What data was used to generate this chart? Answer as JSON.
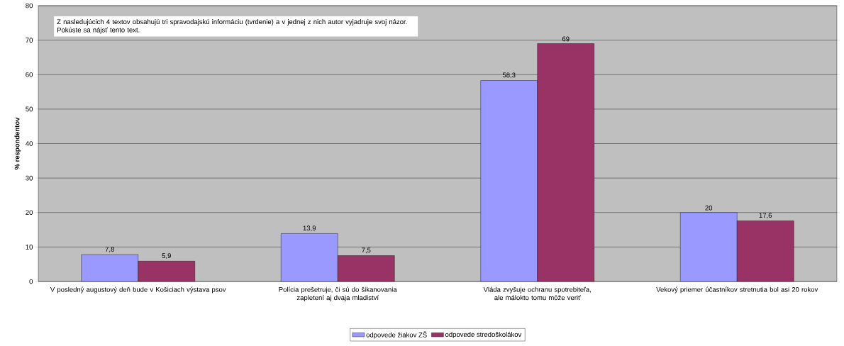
{
  "chart_data": {
    "type": "bar",
    "ylabel": "% respondentov",
    "categories": [
      "V posledný augustový deň bude v Košiciach výstava psov",
      "Polícia prešetruje, či sú do šikanovania zapletení aj dvaja mladiství",
      "Vláda zvyšuje ochranu spotrebiteľa, ale málokto tomu môže veriť",
      "Vekový priemer účastníkov stretnutia bol asi 20 rokov"
    ],
    "series": [
      {
        "name": "odpovede žiakov ZŠ",
        "color": "#9999ff",
        "values": [
          7.8,
          13.9,
          58.3,
          20
        ],
        "value_labels": [
          "7,8",
          "13,9",
          "58,3",
          "20"
        ]
      },
      {
        "name": "odpovede stredoškolákov",
        "color": "#993366",
        "values": [
          5.9,
          7.5,
          69,
          17.6
        ],
        "value_labels": [
          "5,9",
          "7,5",
          "69",
          "17,6"
        ]
      }
    ],
    "ylim": [
      0,
      80
    ],
    "yticks": [
      0,
      10,
      20,
      30,
      40,
      50,
      60,
      70,
      80
    ],
    "grid": "y",
    "legend": "bottom",
    "annotations": [
      "Z nasledujúcich 4 textov obsahujú tri spravodajskú informáciu (tvrdenie) a v jednej z nich autor vyjadruje svoj názor. Pokúste sa nájsť tento text."
    ]
  }
}
